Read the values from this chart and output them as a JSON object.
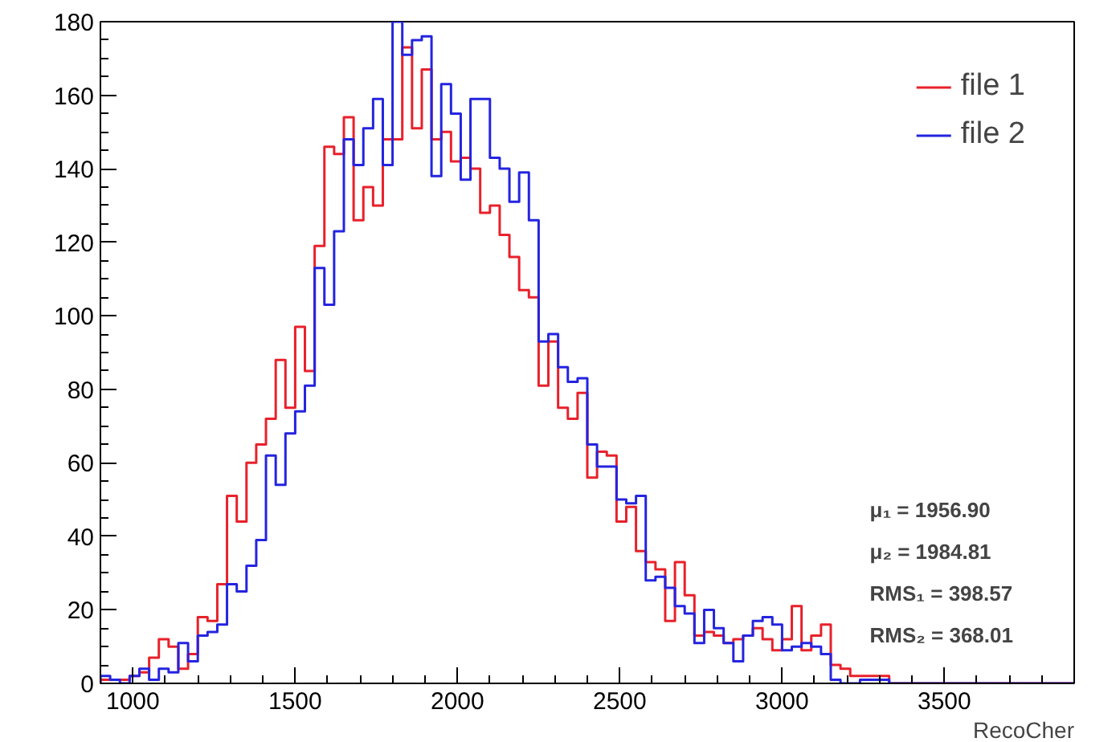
{
  "chart_data": {
    "type": "histogram",
    "bins": [
      900,
      930,
      960,
      990,
      1020,
      1050,
      1080,
      1110,
      1140,
      1170,
      1200,
      1230,
      1260,
      1290,
      1320,
      1350,
      1380,
      1410,
      1440,
      1470,
      1500,
      1530,
      1560,
      1590,
      1620,
      1650,
      1680,
      1710,
      1740,
      1770,
      1800,
      1830,
      1860,
      1890,
      1920,
      1950,
      1980,
      2010,
      2040,
      2070,
      2100,
      2130,
      2160,
      2190,
      2220,
      2250,
      2280,
      2310,
      2340,
      2370,
      2400,
      2430,
      2460,
      2490,
      2520,
      2550,
      2580,
      2610,
      2640,
      2670,
      2700,
      2730,
      2760,
      2790,
      2820,
      2850,
      2880,
      2910,
      2940,
      2970,
      3000,
      3030,
      3060,
      3090,
      3120,
      3150,
      3180,
      3210,
      3240,
      3270,
      3300,
      3330,
      3360,
      3390,
      3420,
      3450,
      3480,
      3510,
      3540,
      3570,
      3600,
      3630,
      3660,
      3690,
      3720,
      3750,
      3780,
      3810,
      3840,
      3870,
      3900
    ],
    "series": [
      {
        "name": "file 1",
        "color": "#e8212b",
        "values": [
          1,
          1,
          1,
          2,
          3,
          7,
          12,
          10,
          4,
          8,
          18,
          17,
          27,
          51,
          44,
          60,
          65,
          72,
          88,
          75,
          97,
          85,
          119,
          146,
          144,
          154,
          126,
          135,
          130,
          148,
          148,
          173,
          151,
          167,
          148,
          150,
          142,
          143,
          140,
          128,
          130,
          122,
          116,
          107,
          105,
          81,
          93,
          75,
          72,
          79,
          56,
          63,
          62,
          44,
          48,
          36,
          33,
          31,
          17,
          33,
          24,
          13,
          14,
          13,
          11,
          12,
          13,
          15,
          12,
          9,
          12,
          21,
          9,
          13,
          16,
          5,
          4,
          2,
          2,
          2,
          2,
          0,
          0,
          0,
          0,
          0,
          0,
          0,
          0,
          0,
          0,
          0,
          0,
          0,
          0,
          0,
          0,
          0,
          0,
          0
        ]
      },
      {
        "name": "file 2",
        "color": "#2424e0",
        "values": [
          2,
          1,
          0,
          2,
          4,
          1,
          4,
          3,
          11,
          6,
          13,
          14,
          16,
          27,
          25,
          32,
          39,
          62,
          54,
          68,
          74,
          81,
          113,
          103,
          123,
          148,
          141,
          151,
          159,
          141,
          180,
          171,
          175,
          176,
          138,
          163,
          155,
          137,
          159,
          159,
          143,
          140,
          131,
          139,
          126,
          93,
          95,
          86,
          82,
          83,
          65,
          59,
          59,
          50,
          49,
          51,
          28,
          29,
          26,
          21,
          19,
          11,
          20,
          15,
          11,
          6,
          13,
          17,
          18,
          16,
          9,
          10,
          11,
          10,
          8,
          1,
          0,
          0,
          1,
          1,
          1,
          0,
          0,
          0,
          0,
          0,
          0,
          0,
          0,
          0,
          0,
          0,
          0,
          0,
          0,
          0,
          0,
          0,
          0,
          0
        ]
      }
    ],
    "xlabel": "RecoCher",
    "xlim": [
      900,
      3900
    ],
    "ylim": [
      0,
      180
    ],
    "xticks": [
      1000,
      1500,
      2000,
      2500,
      3000,
      3500
    ],
    "yticks": [
      0,
      20,
      40,
      60,
      80,
      100,
      120,
      140,
      160,
      180
    ],
    "grid": false,
    "legend": "top right",
    "annotations": [
      "μ₁ = 1956.90",
      "μ₂ = 1984.81",
      "RMS₁ = 398.57",
      "RMS₂ = 368.01"
    ]
  }
}
